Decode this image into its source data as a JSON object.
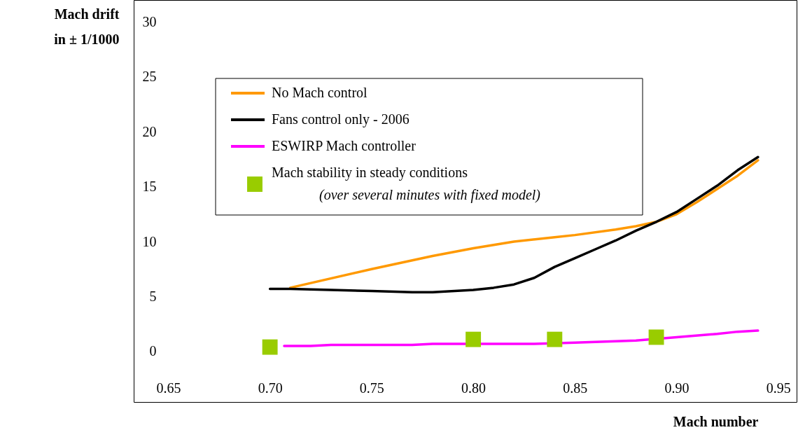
{
  "chart_data": {
    "type": "line",
    "xlabel": "Mach number",
    "ylabel": "Mach drift in ± 1/1000",
    "xlim": [
      0.633,
      0.959
    ],
    "ylim": [
      -4.6,
      32
    ],
    "xticks": [
      {
        "value": 0.65,
        "label": "0.65"
      },
      {
        "value": 0.7,
        "label": "0.70"
      },
      {
        "value": 0.75,
        "label": "0.75"
      },
      {
        "value": 0.8,
        "label": "0.80"
      },
      {
        "value": 0.85,
        "label": "0.85"
      },
      {
        "value": 0.9,
        "label": "0.90"
      },
      {
        "value": 0.95,
        "label": "0.95"
      }
    ],
    "yticks": [
      0,
      5,
      10,
      15,
      20,
      25,
      30
    ],
    "grid": false,
    "legend": "top left",
    "series": [
      {
        "name": "No Mach control",
        "color": "#ff9900",
        "x": [
          0.71,
          0.75,
          0.78,
          0.8,
          0.82,
          0.84,
          0.85,
          0.87,
          0.88,
          0.89,
          0.9,
          0.91,
          0.92,
          0.93,
          0.94
        ],
        "values": [
          5.8,
          7.5,
          8.7,
          9.4,
          10.0,
          10.4,
          10.6,
          11.1,
          11.4,
          11.8,
          12.5,
          13.6,
          14.8,
          16.0,
          17.4
        ]
      },
      {
        "name": "Fans control only - 2006",
        "color": "#000000",
        "x": [
          0.7,
          0.71,
          0.73,
          0.75,
          0.77,
          0.78,
          0.8,
          0.81,
          0.82,
          0.83,
          0.84,
          0.85,
          0.86,
          0.87,
          0.88,
          0.89,
          0.9,
          0.91,
          0.92,
          0.93,
          0.94
        ],
        "values": [
          5.7,
          5.7,
          5.6,
          5.5,
          5.4,
          5.4,
          5.6,
          5.8,
          6.1,
          6.7,
          7.7,
          8.5,
          9.3,
          10.1,
          11.0,
          11.8,
          12.7,
          13.9,
          15.1,
          16.5,
          17.7
        ]
      },
      {
        "name": "ESWIRP Mach controller",
        "color": "#ff00ff",
        "x": [
          0.707,
          0.72,
          0.73,
          0.77,
          0.78,
          0.83,
          0.85,
          0.88,
          0.9,
          0.92,
          0.93,
          0.94
        ],
        "values": [
          0.5,
          0.5,
          0.6,
          0.6,
          0.7,
          0.7,
          0.8,
          1.0,
          1.3,
          1.6,
          1.8,
          1.9
        ]
      },
      {
        "name": "Mach stability in steady conditions (over several minutes with fixed model)",
        "color": "#99cc00",
        "type": "scatter",
        "marker": "square",
        "x": [
          0.7,
          0.8,
          0.84,
          0.89
        ],
        "values": [
          0.4,
          1.1,
          1.1,
          1.3
        ]
      }
    ]
  }
}
